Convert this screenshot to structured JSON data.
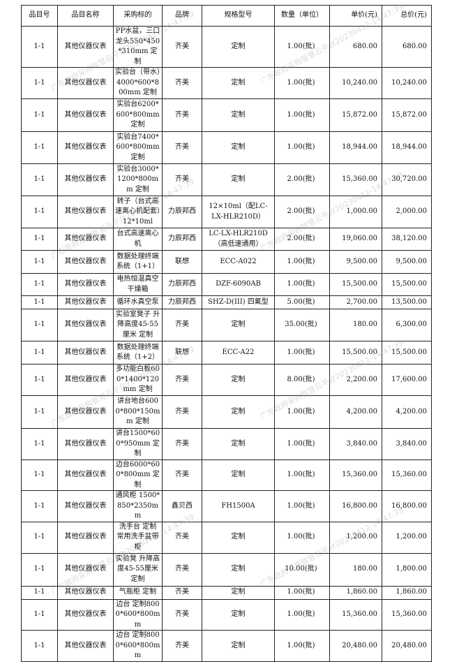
{
  "watermark": "广东政府采购智慧云平台20230412-14:47:39",
  "table": {
    "headers": [
      "品目号",
      "品目名称",
      "采购标的",
      "品牌",
      "规格型号",
      "数量（单位）",
      "单价(元)",
      "总价(元)"
    ],
    "rows": [
      [
        "1-1",
        "其他仪器仪表",
        "PP水盆，三口龙头550*450*310mm 定制",
        "齐美",
        "定制",
        "1.00(批)",
        "680.00",
        "680.00"
      ],
      [
        "1-1",
        "其他仪器仪表",
        "实验台（带水）4000*600*800mm 定制",
        "齐美",
        "定制",
        "1.00(批)",
        "10,240.00",
        "10,240.00"
      ],
      [
        "1-1",
        "其他仪器仪表",
        "实验台6200*600*800mm 定制",
        "齐美",
        "定制",
        "1.00(批)",
        "15,872.00",
        "15,872.00"
      ],
      [
        "1-1",
        "其他仪器仪表",
        "实验台7400*600*800mm 定制",
        "齐美",
        "定制",
        "1.00(批)",
        "18,944.00",
        "18,944.00"
      ],
      [
        "1-1",
        "其他仪器仪表",
        "实验台3000*1200*800mm 定制",
        "齐美",
        "定制",
        "2.00(批)",
        "15,360.00",
        "30,720.00"
      ],
      [
        "1-1",
        "其他仪器仪表",
        "转子（台式高速离心机配套）12*10ml",
        "力辰邦西",
        "12×10ml（配LC-LX-HLR210D）",
        "2.00(批)",
        "1,000.00",
        "2,000.00"
      ],
      [
        "1-1",
        "其他仪器仪表",
        "台式高速离心机",
        "力辰邦西",
        "LC-LX-HLR210D（高低速通用）",
        "2.00(批)",
        "19,060.00",
        "38,120.00"
      ],
      [
        "1-1",
        "其他仪器仪表",
        "数据处理终端系统（1+1）",
        "联想",
        "ECC-A022",
        "1.00(批)",
        "9,500.00",
        "9,500.00"
      ],
      [
        "1-1",
        "其他仪器仪表",
        "电热恒温真空干燥箱",
        "力辰邦西",
        "DZF-6090AB",
        "1.00(批)",
        "15,500.00",
        "15,500.00"
      ],
      [
        "1-1",
        "其他仪器仪表",
        "循环水真空泵",
        "力辰邦西",
        "SHZ-D(III) 四氟型",
        "5.00(批)",
        "2,700.00",
        "13,500.00"
      ],
      [
        "1-1",
        "其他仪器仪表",
        "实验室凳子 升降高度45-55厘米 定制",
        "齐美",
        "定制",
        "35.00(批)",
        "180.00",
        "6,300.00"
      ],
      [
        "1-1",
        "其他仪器仪表",
        "数据处理终端系统（1+2）",
        "联想",
        "ECC-A22",
        "1.00(批)",
        "15,500.00",
        "15,500.00"
      ],
      [
        "1-1",
        "其他仪器仪表",
        "多功能白板600*1400*120mm 定制",
        "齐美",
        "定制",
        "8.00(批)",
        "2,200.00",
        "17,600.00"
      ],
      [
        "1-1",
        "其他仪器仪表",
        "讲台地台6000*800*150mm 定制",
        "齐美",
        "定制",
        "1.00(批)",
        "4,200.00",
        "4,200.00"
      ],
      [
        "1-1",
        "其他仪器仪表",
        "讲台1500*600*950mm 定制",
        "齐美",
        "定制",
        "1.00(批)",
        "3,840.00",
        "3,840.00"
      ],
      [
        "1-1",
        "其他仪器仪表",
        "边台6000*600*800mm 定制",
        "齐美",
        "定制",
        "1.00(批)",
        "15,360.00",
        "15,360.00"
      ],
      [
        "1-1",
        "其他仪器仪表",
        "通风柜 1500*850*2350mm",
        "鑫贝西",
        "FH1500A",
        "1.00(批)",
        "16,800.00",
        "16,800.00"
      ],
      [
        "1-1",
        "其他仪器仪表",
        "洗手台 定制 常用洗手盆带柜",
        "齐美",
        "定制",
        "1.00(批)",
        "1,200.00",
        "1,200.00"
      ],
      [
        "1-1",
        "其他仪器仪表",
        "实验凳 升降高度45-55厘米 定制",
        "齐美",
        "定制",
        "10.00(批)",
        "180.00",
        "1,800.00"
      ],
      [
        "1-1",
        "其他仪器仪表",
        "气瓶柜 定制",
        "齐美",
        "定制",
        "1.00(批)",
        "1,860.00",
        "1,860.00"
      ],
      [
        "1-1",
        "其他仪器仪表",
        "边台 定制8000*600*800mm",
        "齐美",
        "定制",
        "1.00(批)",
        "15,360.00",
        "15,360.00"
      ],
      [
        "1-1",
        "其他仪器仪表",
        "边台 定制8000*600*800mm",
        "齐美",
        "定制",
        "1.00(批)",
        "20,480.00",
        "20,480.00"
      ]
    ]
  }
}
